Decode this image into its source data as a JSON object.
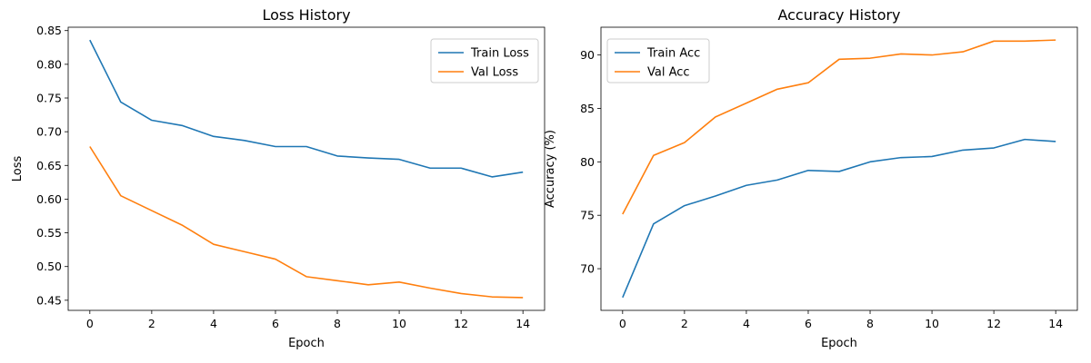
{
  "chart_data": [
    {
      "type": "line",
      "title": "Loss History",
      "xlabel": "Epoch",
      "ylabel": "Loss",
      "x": [
        0,
        1,
        2,
        3,
        4,
        5,
        6,
        7,
        8,
        9,
        10,
        11,
        12,
        13,
        14
      ],
      "xlim": [
        -0.7,
        14.7
      ],
      "ylim": [
        0.435,
        0.855
      ],
      "xticks": [
        0,
        2,
        4,
        6,
        8,
        10,
        12,
        14
      ],
      "xtick_labels": [
        "0",
        "2",
        "4",
        "6",
        "8",
        "10",
        "12",
        "14"
      ],
      "yticks": [
        0.45,
        0.5,
        0.55,
        0.6,
        0.65,
        0.7,
        0.75,
        0.8,
        0.85
      ],
      "ytick_labels": [
        "0.45",
        "0.50",
        "0.55",
        "0.60",
        "0.65",
        "0.70",
        "0.75",
        "0.80",
        "0.85"
      ],
      "legend": "top-right",
      "grid": false,
      "series": [
        {
          "name": "Train Loss",
          "color": "#1f77b4",
          "values": [
            0.836,
            0.744,
            0.717,
            0.709,
            0.693,
            0.687,
            0.678,
            0.678,
            0.664,
            0.661,
            0.659,
            0.646,
            0.646,
            0.633,
            0.64
          ]
        },
        {
          "name": "Val Loss",
          "color": "#ff7f0e",
          "values": [
            0.678,
            0.605,
            0.583,
            0.561,
            0.533,
            0.522,
            0.511,
            0.485,
            0.479,
            0.473,
            0.477,
            0.468,
            0.46,
            0.455,
            0.454
          ]
        }
      ]
    },
    {
      "type": "line",
      "title": "Accuracy History",
      "xlabel": "Epoch",
      "ylabel": "Accuracy (%)",
      "x": [
        0,
        1,
        2,
        3,
        4,
        5,
        6,
        7,
        8,
        9,
        10,
        11,
        12,
        13,
        14
      ],
      "xlim": [
        -0.7,
        14.7
      ],
      "ylim": [
        66.1,
        92.6
      ],
      "xticks": [
        0,
        2,
        4,
        6,
        8,
        10,
        12,
        14
      ],
      "xtick_labels": [
        "0",
        "2",
        "4",
        "6",
        "8",
        "10",
        "12",
        "14"
      ],
      "yticks": [
        70,
        75,
        80,
        85,
        90
      ],
      "ytick_labels": [
        "70",
        "75",
        "80",
        "85",
        "90"
      ],
      "legend": "top-left",
      "grid": false,
      "series": [
        {
          "name": "Train Acc",
          "color": "#1f77b4",
          "values": [
            67.3,
            74.2,
            75.9,
            76.8,
            77.8,
            78.3,
            79.2,
            79.1,
            80.0,
            80.4,
            80.5,
            81.1,
            81.3,
            82.1,
            81.9
          ]
        },
        {
          "name": "Val Acc",
          "color": "#ff7f0e",
          "values": [
            75.1,
            80.6,
            81.8,
            84.2,
            85.5,
            86.8,
            87.4,
            89.6,
            89.7,
            90.1,
            90.0,
            90.3,
            91.3,
            91.3,
            91.4
          ]
        }
      ]
    }
  ]
}
